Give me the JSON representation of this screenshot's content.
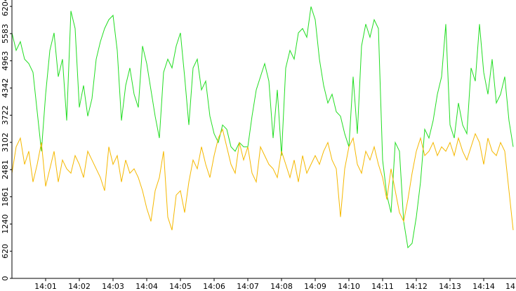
{
  "chart_data": {
    "type": "line",
    "x": [
      0,
      0.125,
      0.25,
      0.375,
      0.5,
      0.625,
      0.75,
      0.875,
      1,
      1.125,
      1.25,
      1.375,
      1.5,
      1.625,
      1.75,
      1.875,
      2,
      2.125,
      2.25,
      2.375,
      2.5,
      2.625,
      2.75,
      2.875,
      3,
      3.125,
      3.25,
      3.375,
      3.5,
      3.625,
      3.75,
      3.875,
      4,
      4.125,
      4.25,
      4.375,
      4.5,
      4.625,
      4.75,
      4.875,
      5,
      5.125,
      5.25,
      5.375,
      5.5,
      5.625,
      5.75,
      5.875,
      6,
      6.125,
      6.25,
      6.375,
      6.5,
      6.625,
      6.75,
      6.875,
      7,
      7.125,
      7.25,
      7.375,
      7.5,
      7.625,
      7.75,
      7.875,
      8,
      8.125,
      8.25,
      8.375,
      8.5,
      8.625,
      8.75,
      8.875,
      9,
      9.125,
      9.25,
      9.375,
      9.5,
      9.625,
      9.75,
      9.875,
      10,
      10.125,
      10.25,
      10.375,
      10.5,
      10.625,
      10.75,
      10.875,
      11,
      11.125,
      11.25,
      11.375,
      11.5,
      11.625,
      11.75,
      11.875,
      12,
      12.125,
      12.25,
      12.375,
      12.5,
      12.625,
      12.75,
      12.875,
      13,
      13.125,
      13.25,
      13.375,
      13.5,
      13.625,
      13.75,
      13.875,
      14,
      14.125,
      14.25,
      14.375,
      14.5,
      14.625,
      14.75,
      14.875
    ],
    "series": [
      {
        "color": "#22dd22",
        "values": [
          5600,
          5200,
          5400,
          5000,
          4900,
          4700,
          3800,
          2900,
          4200,
          5200,
          5600,
          4600,
          5000,
          3600,
          6100,
          5700,
          3900,
          4400,
          3700,
          4100,
          5000,
          5400,
          5700,
          5900,
          6000,
          5200,
          3600,
          4400,
          4800,
          4200,
          3900,
          5300,
          4900,
          4300,
          3700,
          3200,
          4700,
          5000,
          4800,
          5300,
          5600,
          4600,
          3500,
          4800,
          5000,
          4300,
          4500,
          3700,
          3300,
          3100,
          3500,
          3400,
          3000,
          2900,
          3100,
          3000,
          3000,
          3700,
          4300,
          4600,
          4900,
          4500,
          3200,
          4300,
          2800,
          4800,
          5200,
          5000,
          5600,
          5700,
          5500,
          6200,
          5900,
          5000,
          4400,
          4000,
          4200,
          3800,
          3700,
          3300,
          3000,
          4600,
          3300,
          5300,
          5800,
          5500,
          5900,
          5700,
          2700,
          1900,
          1500,
          3100,
          2900,
          1300,
          700,
          800,
          1400,
          2200,
          3400,
          3200,
          3600,
          4200,
          4600,
          5800,
          3500,
          3200,
          4000,
          3500,
          3300,
          4800,
          4500,
          5800,
          4700,
          4200,
          5000,
          4000,
          4200,
          4600,
          3600,
          3000
        ]
      },
      {
        "color": "#f5b800",
        "values": [
          2400,
          3000,
          3200,
          2600,
          2900,
          2200,
          2600,
          3100,
          2100,
          2500,
          2900,
          2200,
          2700,
          2500,
          2400,
          2800,
          2600,
          2300,
          2900,
          2700,
          2500,
          2300,
          2000,
          3000,
          2600,
          2800,
          2200,
          2700,
          2400,
          2500,
          2300,
          2000,
          1600,
          1300,
          2000,
          2300,
          2900,
          1400,
          1100,
          1900,
          2000,
          1500,
          2200,
          2700,
          2500,
          3000,
          2600,
          2300,
          2800,
          3200,
          3400,
          3000,
          2600,
          2400,
          3100,
          2700,
          3000,
          2400,
          2200,
          3000,
          2800,
          2600,
          2500,
          2300,
          2900,
          2600,
          2300,
          2700,
          2200,
          2800,
          2400,
          2600,
          2800,
          2600,
          2900,
          3100,
          2700,
          2500,
          1400,
          2500,
          3000,
          3200,
          2600,
          2400,
          2900,
          2700,
          3000,
          2600,
          2300,
          1800,
          2500,
          2000,
          1500,
          1300,
          1800,
          2400,
          2900,
          3200,
          2800,
          2900,
          3100,
          2800,
          3000,
          2900,
          3100,
          2800,
          3200,
          2900,
          2700,
          3000,
          3300,
          3100,
          2600,
          3200,
          2900,
          2800,
          3100,
          2900,
          2000,
          1100
        ]
      }
    ],
    "xlim": [
      0,
      15
    ],
    "xticks": [
      {
        "value": 1,
        "label": "14:01"
      },
      {
        "value": 2,
        "label": "14:02"
      },
      {
        "value": 3,
        "label": "14:03"
      },
      {
        "value": 4,
        "label": "14:04"
      },
      {
        "value": 5,
        "label": "14:05"
      },
      {
        "value": 6,
        "label": "14:06"
      },
      {
        "value": 7,
        "label": "14:07"
      },
      {
        "value": 8,
        "label": "14:08"
      },
      {
        "value": 9,
        "label": "14:09"
      },
      {
        "value": 10,
        "label": "14:10"
      },
      {
        "value": 11,
        "label": "14:11"
      },
      {
        "value": 12,
        "label": "14:12"
      },
      {
        "value": 13,
        "label": "14:13"
      },
      {
        "value": 14,
        "label": "14:14"
      },
      {
        "value": 15,
        "label": "14"
      }
    ],
    "ylim": [
      0,
      6350
    ],
    "yticks": [
      0,
      620,
      1240,
      1861,
      2481,
      3102,
      3722,
      4342,
      4963,
      5583,
      6204
    ]
  }
}
